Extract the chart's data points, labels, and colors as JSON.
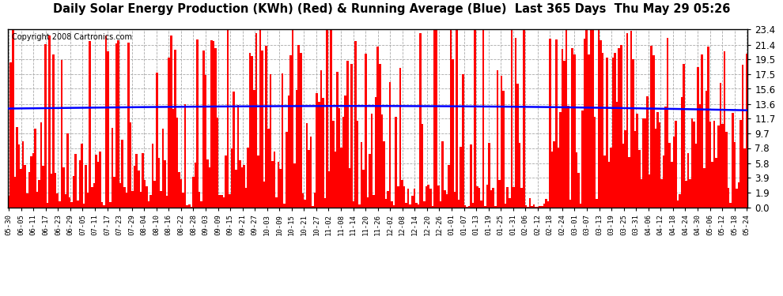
{
  "title": "Daily Solar Energy Production (KWh) (Red) & Running Average (Blue)  Last 365 Days  Thu May 29 05:26",
  "copyright": "Copyright 2008 Cartronics.com",
  "ymin": 0.0,
  "ymax": 23.4,
  "yticks": [
    0.0,
    1.9,
    3.9,
    5.8,
    7.8,
    9.7,
    11.7,
    13.6,
    15.6,
    17.5,
    19.5,
    21.4,
    23.4
  ],
  "bar_color": "#FF0000",
  "avg_color": "#0000FF",
  "background_color": "#FFFFFF",
  "grid_color": "#AAAAAA",
  "title_fontsize": 10.5,
  "copyright_fontsize": 7,
  "n_days": 365,
  "x_tick_labels": [
    "05-30",
    "06-05",
    "06-11",
    "06-17",
    "06-23",
    "06-29",
    "07-05",
    "07-11",
    "07-17",
    "07-23",
    "07-29",
    "08-04",
    "08-10",
    "08-16",
    "08-22",
    "08-28",
    "09-03",
    "09-09",
    "09-15",
    "09-21",
    "09-27",
    "10-03",
    "10-09",
    "10-15",
    "10-21",
    "10-27",
    "11-02",
    "11-08",
    "11-14",
    "11-20",
    "11-26",
    "12-02",
    "12-08",
    "12-14",
    "12-20",
    "12-26",
    "01-01",
    "01-07",
    "01-13",
    "01-19",
    "01-25",
    "01-31",
    "02-06",
    "02-12",
    "02-18",
    "02-24",
    "03-01",
    "03-07",
    "03-13",
    "03-19",
    "03-25",
    "03-31",
    "04-06",
    "04-12",
    "04-18",
    "04-24",
    "04-30",
    "05-06",
    "05-12",
    "05-18",
    "05-24"
  ]
}
